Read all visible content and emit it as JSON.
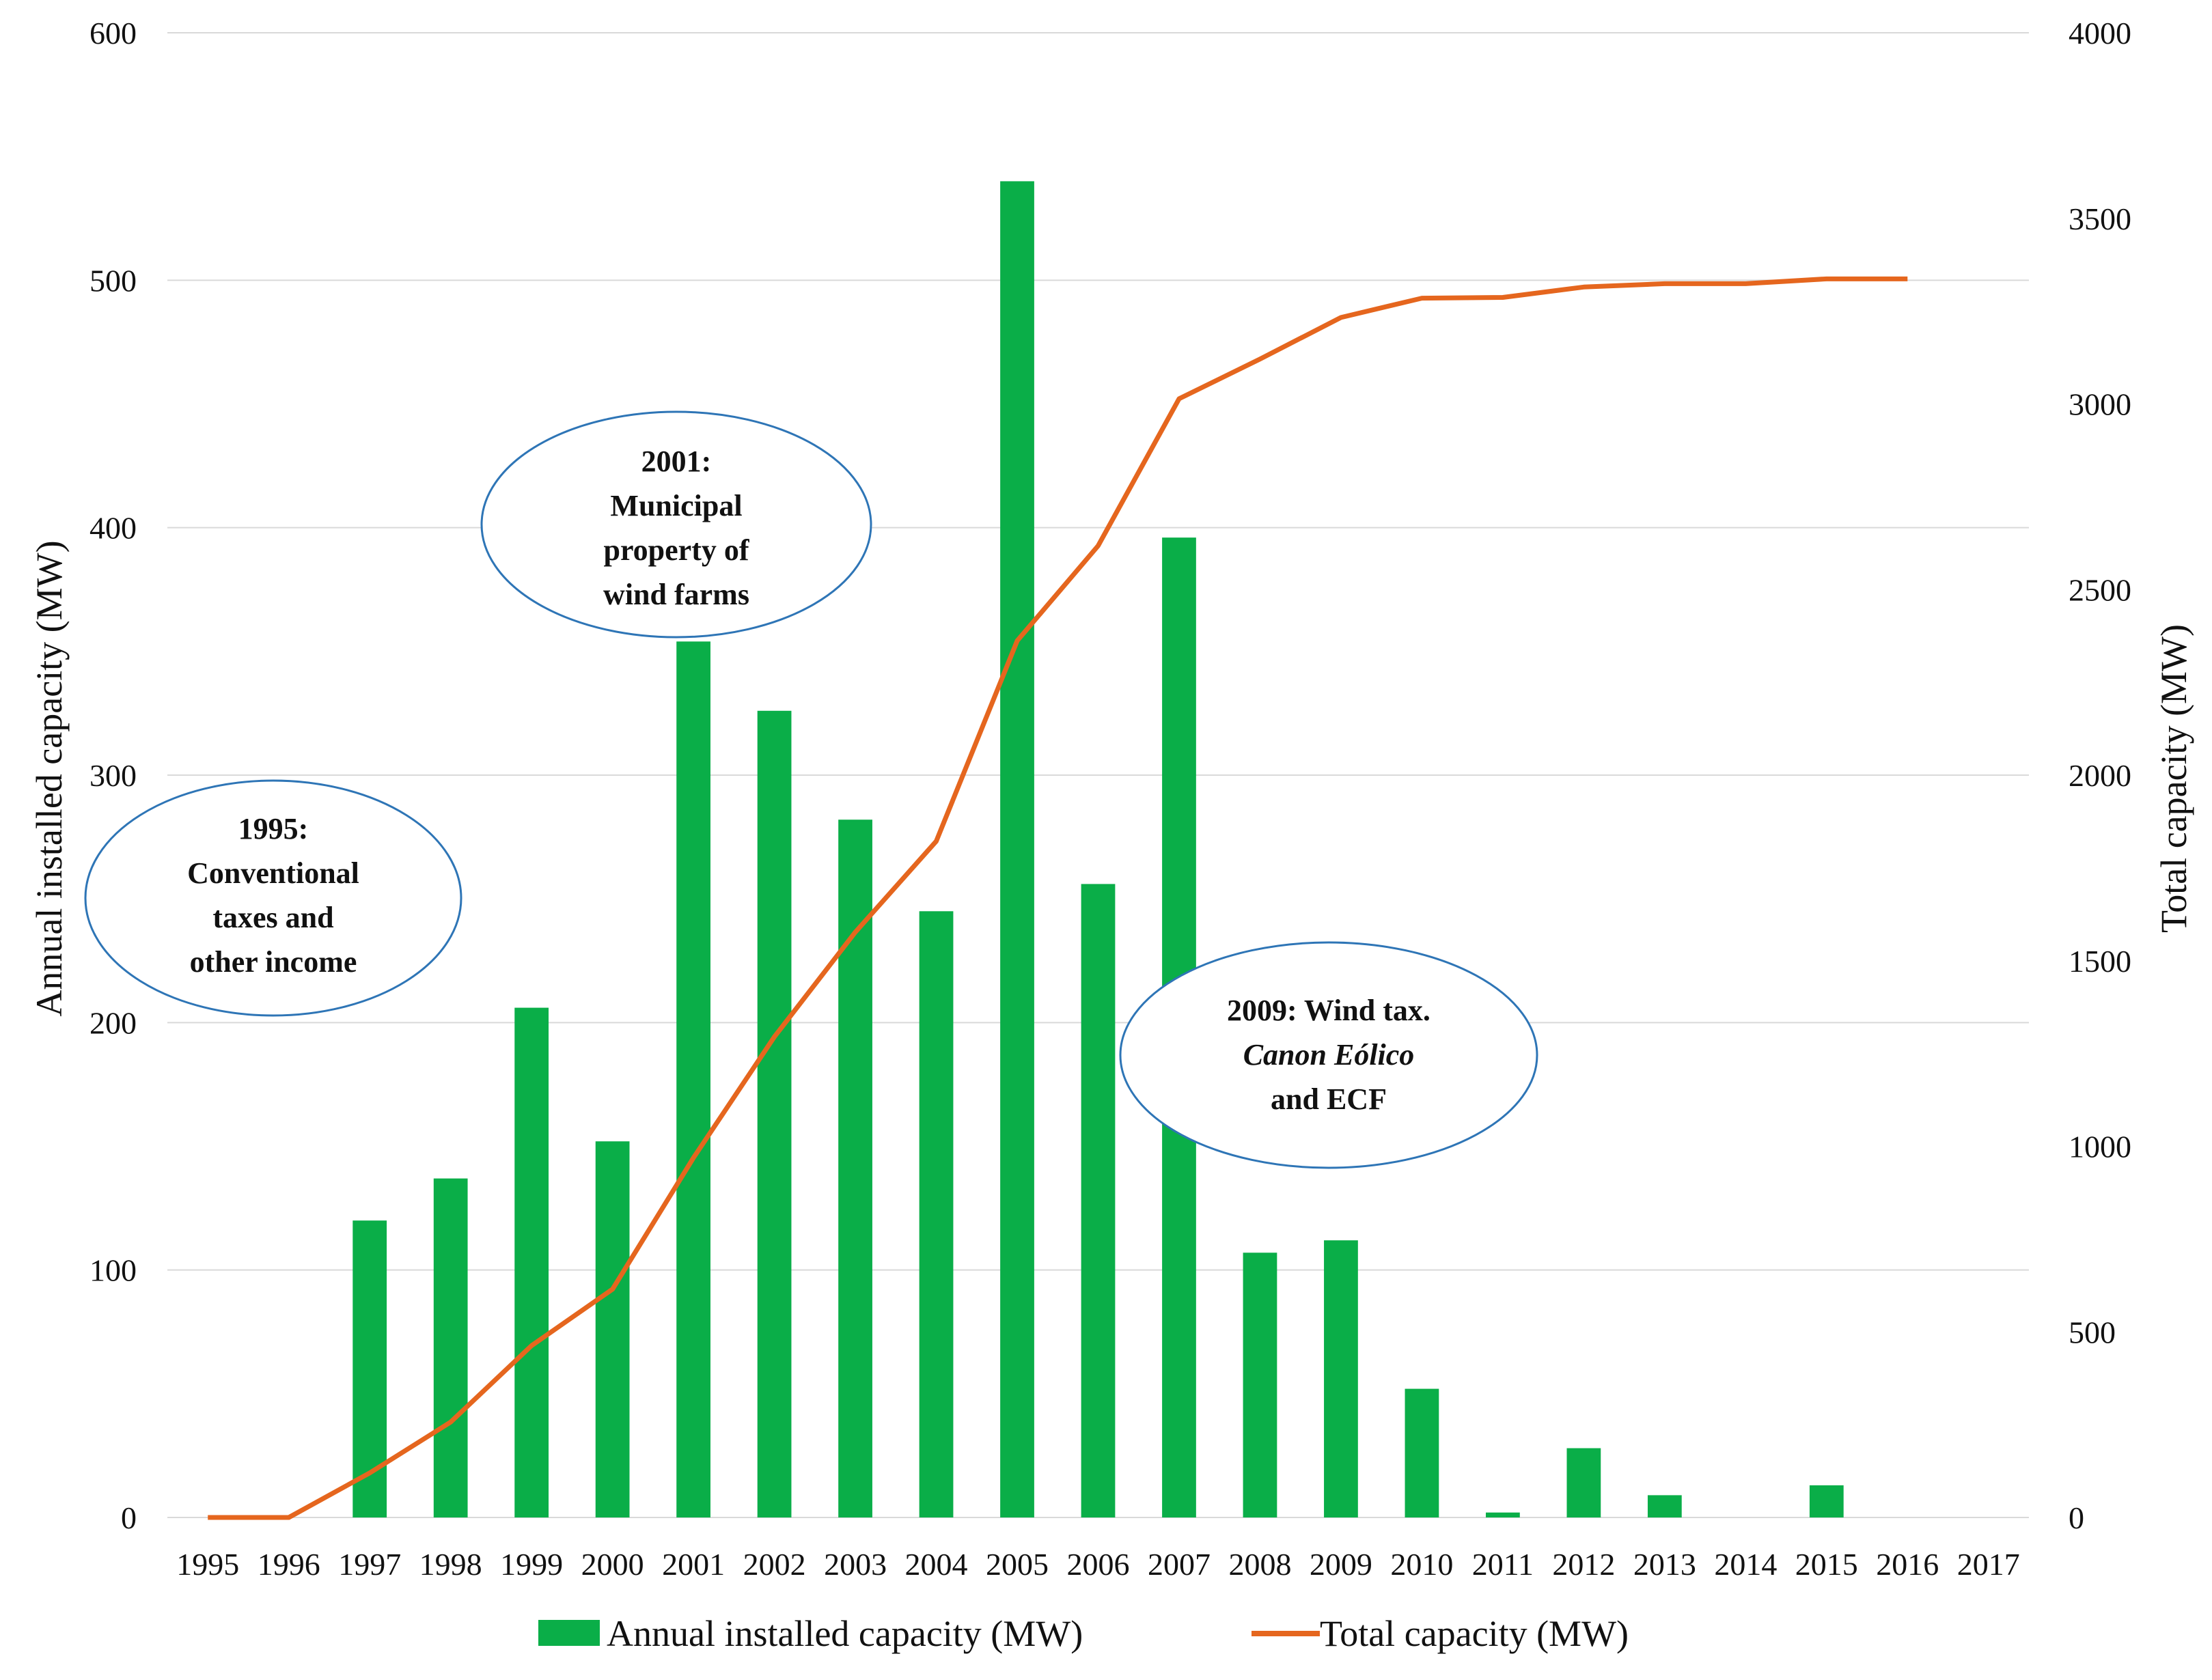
{
  "chart_data": {
    "type": "bar+line",
    "categories": [
      "1995",
      "1996",
      "1997",
      "1998",
      "1999",
      "2000",
      "2001",
      "2002",
      "2003",
      "2004",
      "2005",
      "2006",
      "2007",
      "2008",
      "2009",
      "2010",
      "2011",
      "2012",
      "2013",
      "2014",
      "2015",
      "2016",
      "2017"
    ],
    "series": [
      {
        "name": "Annual installed capacity (MW)",
        "type": "bar",
        "axis": "left",
        "color": "#0aae48",
        "values": [
          0,
          0,
          120,
          137,
          206,
          152,
          354,
          326,
          282,
          245,
          540,
          256,
          396,
          107,
          112,
          52,
          2,
          28,
          9,
          0,
          13,
          0,
          0
        ]
      },
      {
        "name": "Total capacity (MW)",
        "type": "line",
        "axis": "right",
        "color": "#e5661e",
        "values": [
          0,
          0,
          120,
          257,
          463,
          615,
          969,
          1295,
          1577,
          1822,
          2362,
          2618,
          3014,
          3121,
          3233,
          3285,
          3287,
          3315,
          3324,
          3324,
          3337,
          3337,
          null
        ]
      }
    ],
    "ylabel_left": "Annual installed capacity (MW)",
    "ylabel_right": "Total capacity (MW)",
    "ylim_left": [
      0,
      600
    ],
    "ylim_right": [
      0,
      4000
    ],
    "yticks_left": [
      0,
      100,
      200,
      300,
      400,
      500,
      600
    ],
    "yticks_right": [
      0,
      500,
      1000,
      1500,
      2000,
      2500,
      3000,
      3500,
      4000
    ],
    "grid": true,
    "legend_position": "bottom",
    "annotations": [
      {
        "lines": [
          {
            "text": "1995:",
            "italic": false
          },
          {
            "text": "Conventional",
            "italic": false
          },
          {
            "text": "taxes and",
            "italic": false
          },
          {
            "text": "other income",
            "italic": false
          }
        ]
      },
      {
        "lines": [
          {
            "text": "2001:",
            "italic": false
          },
          {
            "text": "Municipal",
            "italic": false
          },
          {
            "text": "property of",
            "italic": false
          },
          {
            "text": "wind farms",
            "italic": false
          }
        ]
      },
      {
        "lines": [
          {
            "text": "2009: Wind tax.",
            "italic": false
          },
          {
            "text": "Canon Eólico",
            "italic": true
          },
          {
            "text": "and ECF",
            "italic": false
          }
        ]
      }
    ],
    "annotation_color": "#2e75b6"
  }
}
